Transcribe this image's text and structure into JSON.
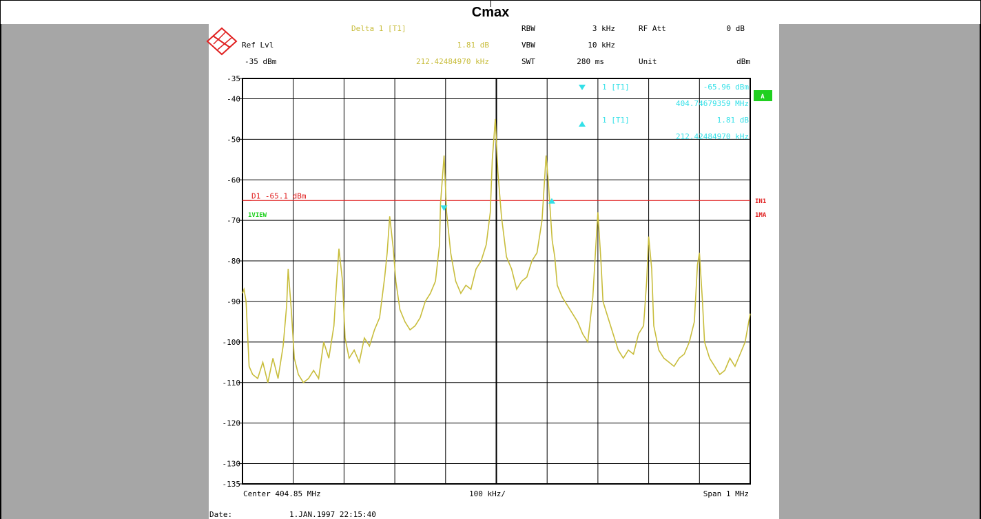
{
  "page_title": "Cmax",
  "header": {
    "delta_label": "Delta 1 [T1]",
    "delta_level": "1.81 dB",
    "delta_freq": "212.42484970 kHz",
    "ref_lvl_label": "Ref Lvl",
    "ref_lvl_value": "-35 dBm",
    "rbw_label": "RBW",
    "rbw_value": "3 kHz",
    "vbw_label": "VBW",
    "vbw_value": "10 kHz",
    "swt_label": "SWT",
    "swt_value": "280 ms",
    "rf_att_label": "RF Att",
    "rf_att_value": "0 dB",
    "unit_label": "Unit",
    "unit_value": "dBm"
  },
  "markers": {
    "m1_label": "1 [T1]",
    "m1_level": "-65.96 dBm",
    "m1_freq": "404.74679359 MHz",
    "delta_label": "1 [T1]",
    "delta_level": "1.81 dB",
    "delta_freq": "212.42484970 kHz"
  },
  "display_line_label": "D1 -65.1 dBm",
  "trace_label": "1VIEW",
  "side_labels": {
    "badge": "A",
    "in1": "IN1",
    "ma": "1MA"
  },
  "footer": {
    "center": "Center 404.85 MHz",
    "div": "100 kHz/",
    "span": "Span 1 MHz",
    "date_label": "Date:",
    "date_value": "1.JAN.1997  22:15:40"
  },
  "colors": {
    "trace": "#c8bd3c",
    "marker": "#33e0e8",
    "display_line": "#e02020",
    "badge": "#20d020"
  },
  "chart_data": {
    "type": "line",
    "xlim": [
      404.35,
      405.35
    ],
    "ylim": [
      -135,
      -35
    ],
    "x_unit": "MHz",
    "y_unit": "dBm",
    "yticks": [
      -35,
      -40,
      -50,
      -60,
      -70,
      -80,
      -90,
      -100,
      -110,
      -120,
      -130,
      -135
    ],
    "display_line_y": -65.1,
    "marker_1": {
      "x": 404.7468,
      "y": -65.96
    },
    "marker_delta": {
      "x": 404.9592,
      "y": -64.15
    },
    "grid": true,
    "series": [
      {
        "x": [
          404.35,
          404.353,
          404.357,
          404.363,
          404.37,
          404.38,
          404.39,
          404.4,
          404.41,
          404.42,
          404.43,
          404.437,
          404.44,
          404.446,
          404.452,
          404.46,
          404.47,
          404.48,
          404.49,
          404.5,
          404.51,
          404.52,
          404.53,
          404.535,
          404.54,
          404.547,
          404.552,
          404.56,
          404.57,
          404.58,
          404.59,
          404.6,
          404.61,
          404.62,
          404.63,
          404.635,
          404.64,
          404.647,
          404.652,
          404.66,
          404.67,
          404.68,
          404.69,
          404.7,
          404.71,
          404.72,
          404.73,
          404.738,
          404.74,
          404.747,
          404.752,
          404.76,
          404.77,
          404.78,
          404.79,
          404.8,
          404.81,
          404.82,
          404.83,
          404.838,
          404.842,
          404.848,
          404.853,
          404.86,
          404.87,
          404.88,
          404.89,
          404.9,
          404.91,
          404.92,
          404.93,
          404.94,
          404.948,
          404.952,
          404.96,
          404.965,
          404.97,
          404.98,
          404.99,
          405.0,
          405.01,
          405.02,
          405.03,
          405.04,
          405.046,
          405.05,
          405.056,
          405.06,
          405.07,
          405.08,
          405.09,
          405.1,
          405.11,
          405.12,
          405.13,
          405.14,
          405.146,
          405.15,
          405.156,
          405.16,
          405.17,
          405.18,
          405.19,
          405.2,
          405.21,
          405.22,
          405.23,
          405.24,
          405.246,
          405.25,
          405.256,
          405.26,
          405.27,
          405.28,
          405.29,
          405.3,
          405.31,
          405.32,
          405.33,
          405.34,
          405.35
        ],
        "y": [
          -88,
          -87,
          -90,
          -106,
          -108,
          -109,
          -105,
          -110,
          -104,
          -109,
          -101,
          -91,
          -82,
          -92,
          -104,
          -108,
          -110,
          -109,
          -107,
          -109,
          -100,
          -104,
          -96,
          -86,
          -77,
          -85,
          -99,
          -104,
          -102,
          -105,
          -99,
          -101,
          -97,
          -94,
          -84,
          -78,
          -69,
          -77,
          -85,
          -92,
          -95,
          -97,
          -96,
          -94,
          -90,
          -88,
          -85,
          -76,
          -66,
          -54,
          -68,
          -78,
          -85,
          -88,
          -86,
          -87,
          -82,
          -80,
          -76,
          -68,
          -55,
          -45,
          -58,
          -69,
          -79,
          -82,
          -87,
          -85,
          -84,
          -80,
          -78,
          -70,
          -54,
          -60,
          -75,
          -79,
          -86,
          -89,
          -91,
          -93,
          -95,
          -98,
          -100,
          -89,
          -76,
          -68,
          -80,
          -90,
          -94,
          -98,
          -102,
          -104,
          -102,
          -103,
          -98,
          -96,
          -85,
          -74,
          -82,
          -96,
          -102,
          -104,
          -105,
          -106,
          -104,
          -103,
          -100,
          -95,
          -81,
          -78,
          -90,
          -100,
          -104,
          -106,
          -108,
          -107,
          -104,
          -106,
          -103,
          -100,
          -93
        ]
      }
    ]
  }
}
